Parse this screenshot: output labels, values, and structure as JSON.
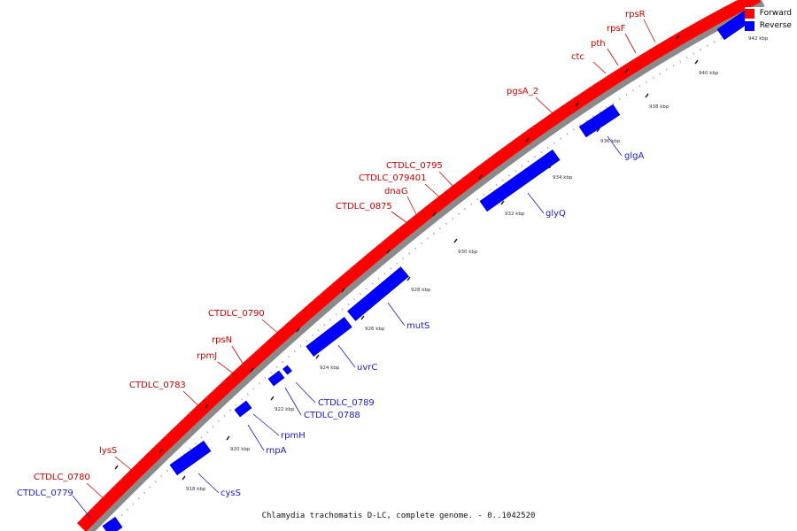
{
  "caption": "Chlamydia trachomatis D-LC, complete genome. - 0..1042520",
  "legend": {
    "forward": {
      "label": "Forward",
      "color": "#ff0000"
    },
    "reverse": {
      "label": "Reverse",
      "color": "#0000ff"
    }
  },
  "colors": {
    "forward_text": "#cc0000",
    "reverse_text": "#1a1acc"
  },
  "ticks": [
    "918 kbp",
    "920 kbp",
    "922 kbp",
    "924 kbp",
    "926 kbp",
    "928 kbp",
    "930 kbp",
    "932 kbp",
    "934 kbp",
    "936 kbp",
    "938 kbp",
    "940 kbp",
    "942 kbp"
  ],
  "forward_genes": [
    "rpsR",
    "rpsF",
    "pth",
    "ctc",
    "pgsA_2",
    "CTDLC_0795",
    "CTDLC_079401",
    "dnaG",
    "CTDLC_0875",
    "CTDLC_0790",
    "rpsN",
    "rpmJ",
    "CTDLC_0783",
    "lysS",
    "CTDLC_0780"
  ],
  "reverse_genes": [
    "glgA",
    "glyQ",
    "mutS",
    "uvrC",
    "CTDLC_0789",
    "CTDLC_0788",
    "rpmH",
    "rnpA",
    "cysS",
    "CTDLC_0779"
  ]
}
